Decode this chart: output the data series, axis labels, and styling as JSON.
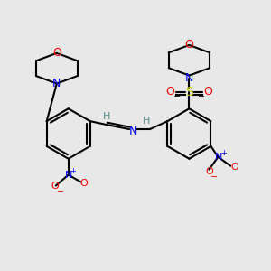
{
  "background_color": "#e8e8e8",
  "bond_color": "#000000",
  "atom_colors": {
    "O": "#ff0000",
    "N": "#0000ff",
    "S": "#cccc00",
    "H": "#558888",
    "C": "#000000"
  },
  "figsize": [
    3.0,
    3.0
  ],
  "dpi": 100
}
